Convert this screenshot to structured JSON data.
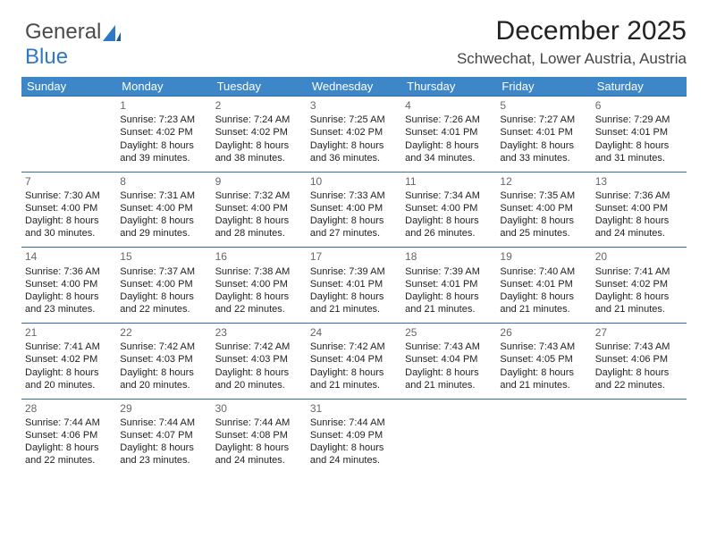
{
  "logo": {
    "part1": "General",
    "part2": "Blue"
  },
  "title": "December 2025",
  "location": "Schwechat, Lower Austria, Austria",
  "colors": {
    "header_bg": "#3d87c9",
    "header_text": "#ffffff",
    "cell_border": "#2f6da8",
    "daynum": "#666666",
    "text": "#222222",
    "logo_gray": "#4b4b4b",
    "logo_blue": "#2f78c3"
  },
  "day_headers": [
    "Sunday",
    "Monday",
    "Tuesday",
    "Wednesday",
    "Thursday",
    "Friday",
    "Saturday"
  ],
  "weeks": [
    [
      null,
      {
        "n": "1",
        "sr": "Sunrise: 7:23 AM",
        "ss": "Sunset: 4:02 PM",
        "dl": "Daylight: 8 hours and 39 minutes."
      },
      {
        "n": "2",
        "sr": "Sunrise: 7:24 AM",
        "ss": "Sunset: 4:02 PM",
        "dl": "Daylight: 8 hours and 38 minutes."
      },
      {
        "n": "3",
        "sr": "Sunrise: 7:25 AM",
        "ss": "Sunset: 4:02 PM",
        "dl": "Daylight: 8 hours and 36 minutes."
      },
      {
        "n": "4",
        "sr": "Sunrise: 7:26 AM",
        "ss": "Sunset: 4:01 PM",
        "dl": "Daylight: 8 hours and 34 minutes."
      },
      {
        "n": "5",
        "sr": "Sunrise: 7:27 AM",
        "ss": "Sunset: 4:01 PM",
        "dl": "Daylight: 8 hours and 33 minutes."
      },
      {
        "n": "6",
        "sr": "Sunrise: 7:29 AM",
        "ss": "Sunset: 4:01 PM",
        "dl": "Daylight: 8 hours and 31 minutes."
      }
    ],
    [
      {
        "n": "7",
        "sr": "Sunrise: 7:30 AM",
        "ss": "Sunset: 4:00 PM",
        "dl": "Daylight: 8 hours and 30 minutes."
      },
      {
        "n": "8",
        "sr": "Sunrise: 7:31 AM",
        "ss": "Sunset: 4:00 PM",
        "dl": "Daylight: 8 hours and 29 minutes."
      },
      {
        "n": "9",
        "sr": "Sunrise: 7:32 AM",
        "ss": "Sunset: 4:00 PM",
        "dl": "Daylight: 8 hours and 28 minutes."
      },
      {
        "n": "10",
        "sr": "Sunrise: 7:33 AM",
        "ss": "Sunset: 4:00 PM",
        "dl": "Daylight: 8 hours and 27 minutes."
      },
      {
        "n": "11",
        "sr": "Sunrise: 7:34 AM",
        "ss": "Sunset: 4:00 PM",
        "dl": "Daylight: 8 hours and 26 minutes."
      },
      {
        "n": "12",
        "sr": "Sunrise: 7:35 AM",
        "ss": "Sunset: 4:00 PM",
        "dl": "Daylight: 8 hours and 25 minutes."
      },
      {
        "n": "13",
        "sr": "Sunrise: 7:36 AM",
        "ss": "Sunset: 4:00 PM",
        "dl": "Daylight: 8 hours and 24 minutes."
      }
    ],
    [
      {
        "n": "14",
        "sr": "Sunrise: 7:36 AM",
        "ss": "Sunset: 4:00 PM",
        "dl": "Daylight: 8 hours and 23 minutes."
      },
      {
        "n": "15",
        "sr": "Sunrise: 7:37 AM",
        "ss": "Sunset: 4:00 PM",
        "dl": "Daylight: 8 hours and 22 minutes."
      },
      {
        "n": "16",
        "sr": "Sunrise: 7:38 AM",
        "ss": "Sunset: 4:00 PM",
        "dl": "Daylight: 8 hours and 22 minutes."
      },
      {
        "n": "17",
        "sr": "Sunrise: 7:39 AM",
        "ss": "Sunset: 4:01 PM",
        "dl": "Daylight: 8 hours and 21 minutes."
      },
      {
        "n": "18",
        "sr": "Sunrise: 7:39 AM",
        "ss": "Sunset: 4:01 PM",
        "dl": "Daylight: 8 hours and 21 minutes."
      },
      {
        "n": "19",
        "sr": "Sunrise: 7:40 AM",
        "ss": "Sunset: 4:01 PM",
        "dl": "Daylight: 8 hours and 21 minutes."
      },
      {
        "n": "20",
        "sr": "Sunrise: 7:41 AM",
        "ss": "Sunset: 4:02 PM",
        "dl": "Daylight: 8 hours and 21 minutes."
      }
    ],
    [
      {
        "n": "21",
        "sr": "Sunrise: 7:41 AM",
        "ss": "Sunset: 4:02 PM",
        "dl": "Daylight: 8 hours and 20 minutes."
      },
      {
        "n": "22",
        "sr": "Sunrise: 7:42 AM",
        "ss": "Sunset: 4:03 PM",
        "dl": "Daylight: 8 hours and 20 minutes."
      },
      {
        "n": "23",
        "sr": "Sunrise: 7:42 AM",
        "ss": "Sunset: 4:03 PM",
        "dl": "Daylight: 8 hours and 20 minutes."
      },
      {
        "n": "24",
        "sr": "Sunrise: 7:42 AM",
        "ss": "Sunset: 4:04 PM",
        "dl": "Daylight: 8 hours and 21 minutes."
      },
      {
        "n": "25",
        "sr": "Sunrise: 7:43 AM",
        "ss": "Sunset: 4:04 PM",
        "dl": "Daylight: 8 hours and 21 minutes."
      },
      {
        "n": "26",
        "sr": "Sunrise: 7:43 AM",
        "ss": "Sunset: 4:05 PM",
        "dl": "Daylight: 8 hours and 21 minutes."
      },
      {
        "n": "27",
        "sr": "Sunrise: 7:43 AM",
        "ss": "Sunset: 4:06 PM",
        "dl": "Daylight: 8 hours and 22 minutes."
      }
    ],
    [
      {
        "n": "28",
        "sr": "Sunrise: 7:44 AM",
        "ss": "Sunset: 4:06 PM",
        "dl": "Daylight: 8 hours and 22 minutes."
      },
      {
        "n": "29",
        "sr": "Sunrise: 7:44 AM",
        "ss": "Sunset: 4:07 PM",
        "dl": "Daylight: 8 hours and 23 minutes."
      },
      {
        "n": "30",
        "sr": "Sunrise: 7:44 AM",
        "ss": "Sunset: 4:08 PM",
        "dl": "Daylight: 8 hours and 24 minutes."
      },
      {
        "n": "31",
        "sr": "Sunrise: 7:44 AM",
        "ss": "Sunset: 4:09 PM",
        "dl": "Daylight: 8 hours and 24 minutes."
      },
      null,
      null,
      null
    ]
  ]
}
